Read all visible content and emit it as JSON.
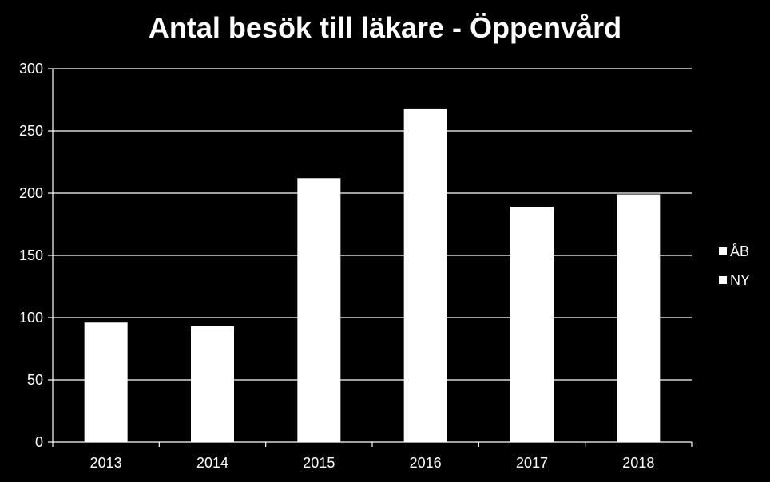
{
  "chart_data": {
    "type": "bar",
    "title": "Antal besök till läkare - Öppenvård",
    "categories": [
      "2013",
      "2014",
      "2015",
      "2016",
      "2017",
      "2018"
    ],
    "series": [
      {
        "name": "ÅB",
        "values": [
          0,
          0,
          0,
          0,
          0,
          0
        ],
        "color": "#ffffff"
      },
      {
        "name": "NY",
        "values": [
          96,
          93,
          212,
          268,
          189,
          199
        ],
        "color": "#ffffff"
      }
    ],
    "xlabel": "",
    "ylabel": "",
    "ylim": [
      0,
      300
    ],
    "yticks": [
      "0",
      "50",
      "100",
      "150",
      "200",
      "250",
      "300"
    ],
    "grid": true,
    "legend": "right",
    "colors": {
      "background": "#000000",
      "text": "#ffffff",
      "gridline": "#ffffff",
      "bar": "#ffffff"
    }
  }
}
